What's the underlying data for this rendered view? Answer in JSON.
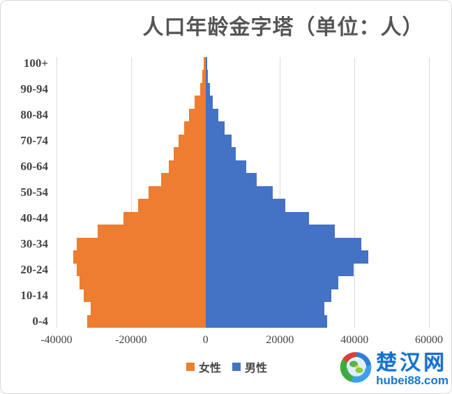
{
  "title": "人口年龄金字塔（单位：人）",
  "axes": {
    "x": {
      "ticks": [
        "-40000",
        "-20000",
        "0",
        "20000",
        "40000",
        "60000"
      ],
      "min": -40000,
      "max": 60000
    },
    "y": {
      "ticks": [
        "100+",
        "90-94",
        "80-84",
        "70-74",
        "60-64",
        "50-54",
        "40-44",
        "30-34",
        "20-24",
        "10-14",
        "0-4"
      ]
    }
  },
  "legend": {
    "items": [
      {
        "label": "女性",
        "color": "#ED7D31"
      },
      {
        "label": "男性",
        "color": "#4472C4"
      }
    ]
  },
  "logo": {
    "name": "楚汉网",
    "domain": "hubei88.com",
    "color": "#1570D0"
  },
  "colors": {
    "female": "#ED7D31",
    "male": "#4472C4",
    "gridline": "#D9D9D9",
    "text": "#444444",
    "title": "#555555"
  },
  "chart_data": {
    "type": "bar",
    "variant": "population-pyramid-horizontal",
    "title": "人口年龄金字塔（单位：人）",
    "categories_top_to_bottom": [
      "100+",
      "95-99",
      "90-94",
      "85-89",
      "80-84",
      "75-79",
      "70-74",
      "65-69",
      "60-64",
      "55-59",
      "50-54",
      "45-49",
      "40-44",
      "35-39",
      "30-34",
      "25-29",
      "20-24",
      "15-19",
      "10-14",
      "5-9",
      "0-4"
    ],
    "series": [
      {
        "name": "女性",
        "color": "#ED7D31",
        "side": "left",
        "values": [
          -500,
          -800,
          -1400,
          -2900,
          -4500,
          -5800,
          -7200,
          -8500,
          -9900,
          -11900,
          -15300,
          -18000,
          -22000,
          -28900,
          -34500,
          -35500,
          -34500,
          -33900,
          -32700,
          -30800,
          -31700
        ]
      },
      {
        "name": "男性",
        "color": "#4472C4",
        "side": "right",
        "values": [
          500,
          700,
          1200,
          2000,
          3500,
          5200,
          7000,
          8200,
          11000,
          13700,
          18100,
          21400,
          27800,
          34700,
          41800,
          43700,
          39700,
          35700,
          33700,
          32000,
          32700
        ]
      }
    ],
    "xlim": [
      -40000,
      60000
    ],
    "grid": "vertical-only",
    "bar_gap": 0,
    "legend_position": "bottom-center"
  }
}
